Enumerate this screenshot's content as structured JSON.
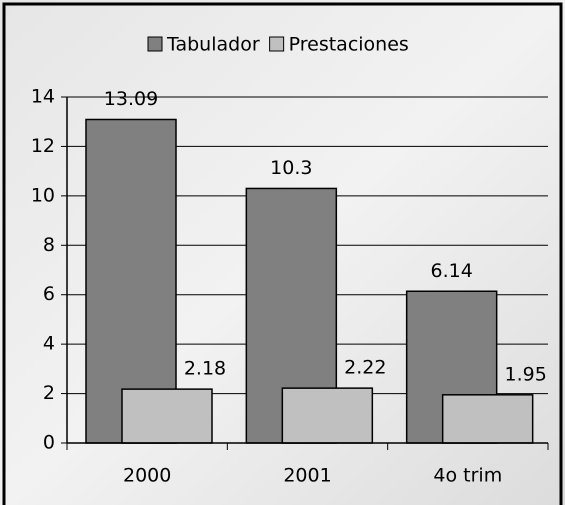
{
  "chart_data": {
    "type": "bar",
    "categories": [
      "2000",
      "2001",
      "4o trim"
    ],
    "series": [
      {
        "name": "Tabulador",
        "color": "#808080",
        "values": [
          13.09,
          10.3,
          6.14
        ]
      },
      {
        "name": "Prestaciones",
        "color": "#c0c0c0",
        "values": [
          2.18,
          2.22,
          1.95
        ]
      }
    ],
    "ylim": [
      0,
      14
    ],
    "yticks": [
      0,
      2,
      4,
      6,
      8,
      10,
      12,
      14
    ],
    "grid": true,
    "legend": "top"
  }
}
